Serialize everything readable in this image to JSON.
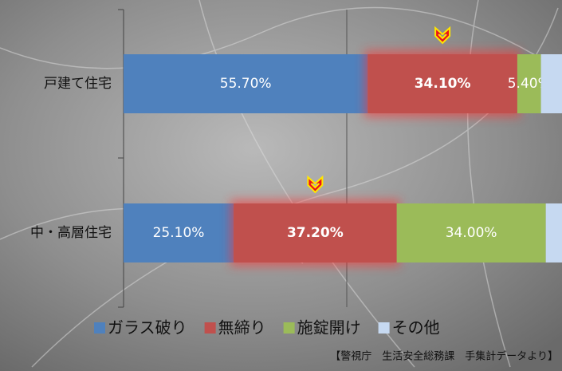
{
  "chart_data": {
    "type": "stacked-bar-100",
    "categories": [
      "戸建て住宅",
      "中・高層住宅"
    ],
    "series": [
      {
        "name": "ガラス破り",
        "color": "#4f81bd",
        "values": [
          55.7,
          25.1
        ],
        "value_labels": [
          "55.70%",
          "25.10%"
        ]
      },
      {
        "name": "無締り",
        "color": "#c0504d",
        "values": [
          34.1,
          37.2
        ],
        "value_labels": [
          "34.10%",
          "37.20%"
        ]
      },
      {
        "name": "施錠開け",
        "color": "#9bbb59",
        "values": [
          5.4,
          34.0
        ],
        "value_labels": [
          "5.40%",
          "34.00%"
        ]
      },
      {
        "name": "その他",
        "color": "#c6d9f1",
        "values": [
          4.8,
          3.7
        ]
      }
    ],
    "xlim": [
      0,
      100
    ],
    "highlight_series": 1,
    "source": "【警視庁　生活安全総務課　手集計データより】"
  }
}
